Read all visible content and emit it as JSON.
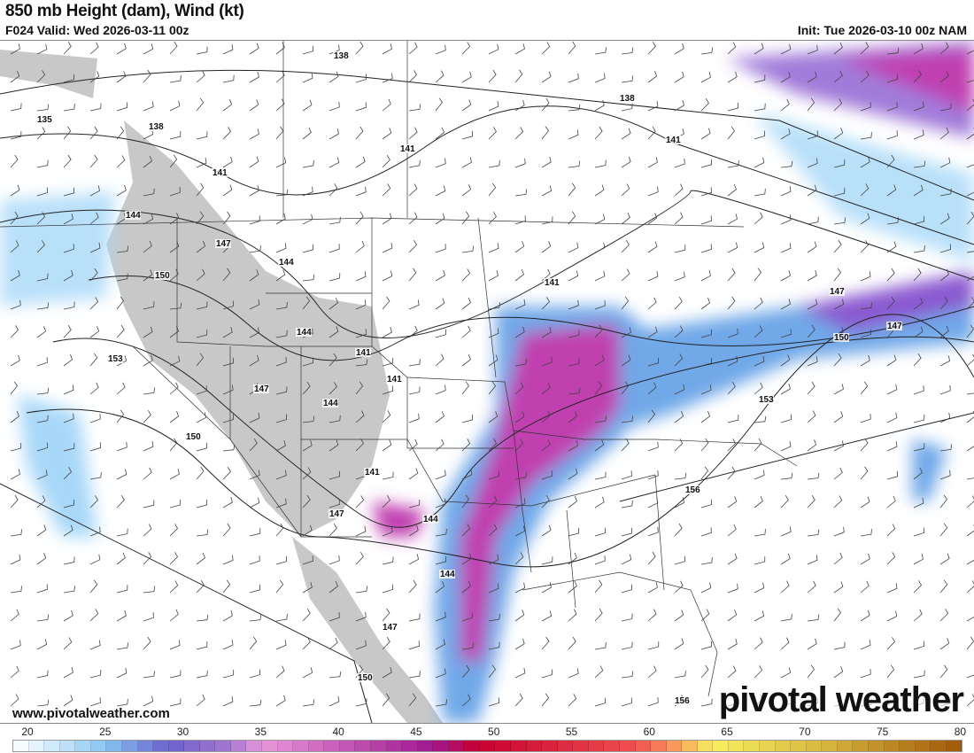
{
  "header": {
    "title": "850 mb Height (dam), Wind (kt)",
    "valid": "F024 Valid: Wed 2026-03-11 00z",
    "init": "Init: Tue 2026-03-10 00z NAM"
  },
  "map": {
    "contour_labels": [
      "135",
      "138",
      "138",
      "138",
      "141",
      "141",
      "141",
      "141",
      "144",
      "144",
      "144",
      "144",
      "141",
      "141",
      "147",
      "147",
      "144",
      "150",
      "150",
      "153",
      "147",
      "141",
      "147",
      "144",
      "147",
      "150",
      "153",
      "156",
      "156",
      "150",
      "147"
    ],
    "colors": {
      "light_blue": "#a8d8f8",
      "blue": "#6fa8e8",
      "purple": "#8a5ad0",
      "magenta": "#c040b0",
      "terrain": "#c8c8c8"
    }
  },
  "footer": {
    "website": "www.pivotalweather.com",
    "brand": "pivotal weather"
  },
  "colorbar": {
    "labels": [
      "20",
      "25",
      "30",
      "35",
      "40",
      "45",
      "50",
      "55",
      "60",
      "65",
      "70",
      "75",
      "80"
    ],
    "min": 20,
    "max": 81,
    "units": "kt"
  }
}
